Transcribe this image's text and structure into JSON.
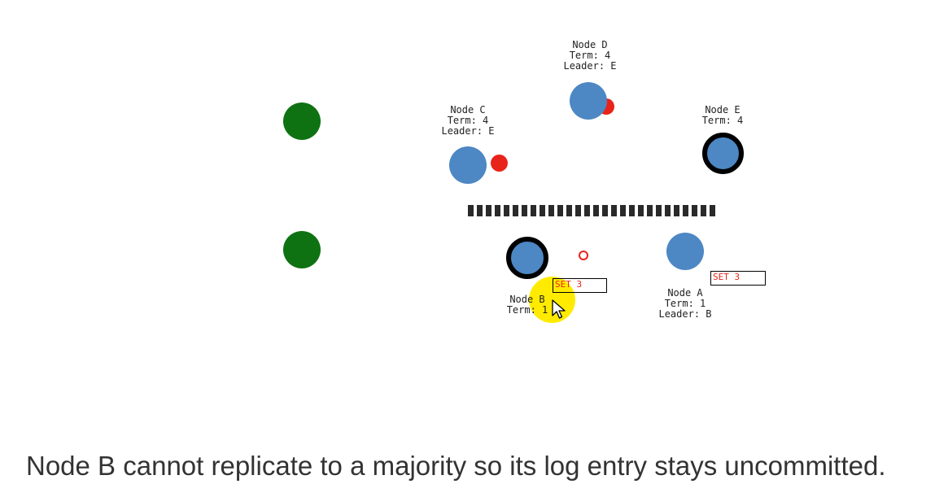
{
  "nodes": {
    "a": {
      "name": "Node A",
      "term": "Term: 1",
      "leader": "Leader: B",
      "log_entry": "SET 3"
    },
    "b": {
      "name": "Node B",
      "term": "Term: 1",
      "log_entry": "SET 3"
    },
    "c": {
      "name": "Node C",
      "term": "Term: 4",
      "leader": "Leader: E"
    },
    "d": {
      "name": "Node D",
      "term": "Term: 4",
      "leader": "Leader: E"
    },
    "e": {
      "name": "Node E",
      "term": "Term: 4"
    }
  },
  "colors": {
    "node": "#4d87c4",
    "client": "#0e7212",
    "message": "#e8231a",
    "cursor_highlight": "#ffeb00"
  },
  "icons": [
    "cursor-icon"
  ],
  "caption": "Node B cannot replicate to a majority so its log entry stays uncommitted."
}
